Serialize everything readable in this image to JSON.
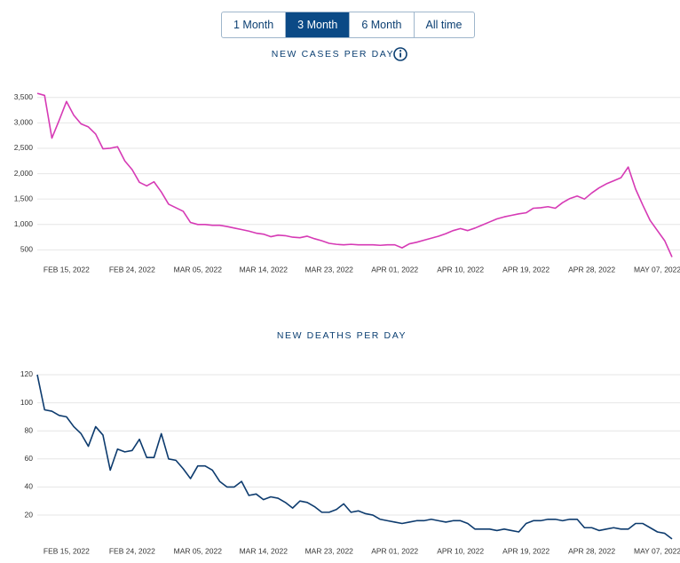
{
  "controls": [
    {
      "label": "1 Month",
      "active": false
    },
    {
      "label": "3 Month",
      "active": true
    },
    {
      "label": "6 Month",
      "active": false
    },
    {
      "label": "All time",
      "active": false
    }
  ],
  "chart_data": [
    {
      "type": "line",
      "title": "NEW CASES PER DAY",
      "color": "#d63ab5",
      "grid": true,
      "x": [
        "2022-02-11",
        "2022-02-12",
        "2022-02-13",
        "2022-02-14",
        "2022-02-15",
        "2022-02-16",
        "2022-02-17",
        "2022-02-18",
        "2022-02-19",
        "2022-02-20",
        "2022-02-21",
        "2022-02-22",
        "2022-02-23",
        "2022-02-24",
        "2022-02-25",
        "2022-02-26",
        "2022-02-27",
        "2022-02-28",
        "2022-03-01",
        "2022-03-02",
        "2022-03-03",
        "2022-03-04",
        "2022-03-05",
        "2022-03-06",
        "2022-03-07",
        "2022-03-08",
        "2022-03-09",
        "2022-03-10",
        "2022-03-11",
        "2022-03-12",
        "2022-03-13",
        "2022-03-14",
        "2022-03-15",
        "2022-03-16",
        "2022-03-17",
        "2022-03-18",
        "2022-03-19",
        "2022-03-20",
        "2022-03-21",
        "2022-03-22",
        "2022-03-23",
        "2022-03-24",
        "2022-03-25",
        "2022-03-26",
        "2022-03-27",
        "2022-03-28",
        "2022-03-29",
        "2022-03-30",
        "2022-03-31",
        "2022-04-01",
        "2022-04-02",
        "2022-04-03",
        "2022-04-04",
        "2022-04-05",
        "2022-04-06",
        "2022-04-07",
        "2022-04-08",
        "2022-04-09",
        "2022-04-10",
        "2022-04-11",
        "2022-04-12",
        "2022-04-13",
        "2022-04-14",
        "2022-04-15",
        "2022-04-16",
        "2022-04-17",
        "2022-04-18",
        "2022-04-19",
        "2022-04-20",
        "2022-04-21",
        "2022-04-22",
        "2022-04-23",
        "2022-04-24",
        "2022-04-25",
        "2022-04-26",
        "2022-04-27",
        "2022-04-28",
        "2022-04-29",
        "2022-04-30",
        "2022-05-01",
        "2022-05-02",
        "2022-05-03",
        "2022-05-04",
        "2022-05-05",
        "2022-05-06",
        "2022-05-07",
        "2022-05-08",
        "2022-05-09"
      ],
      "values": [
        3580,
        3540,
        2700,
        3050,
        3420,
        3150,
        2980,
        2920,
        2780,
        2490,
        2500,
        2530,
        2250,
        2080,
        1830,
        1760,
        1840,
        1640,
        1400,
        1330,
        1260,
        1040,
        1000,
        1000,
        985,
        985,
        960,
        930,
        900,
        870,
        830,
        810,
        760,
        790,
        780,
        750,
        740,
        770,
        720,
        680,
        630,
        610,
        600,
        610,
        600,
        600,
        600,
        590,
        600,
        600,
        540,
        620,
        650,
        690,
        730,
        770,
        820,
        880,
        920,
        880,
        930,
        990,
        1050,
        1110,
        1150,
        1180,
        1210,
        1230,
        1320,
        1330,
        1350,
        1320,
        1430,
        1510,
        1560,
        1500,
        1620,
        1720,
        1800,
        1860,
        1920,
        2130,
        1700,
        1380,
        1080,
        880,
        680,
        360
      ],
      "xlim": [
        "2022-02-11",
        "2022-05-09"
      ],
      "xticks": [
        {
          "value": "2022-02-15",
          "label": "FEB 15, 2022"
        },
        {
          "value": "2022-02-24",
          "label": "FEB 24, 2022"
        },
        {
          "value": "2022-03-05",
          "label": "MAR 05, 2022"
        },
        {
          "value": "2022-03-14",
          "label": "MAR 14, 2022"
        },
        {
          "value": "2022-03-23",
          "label": "MAR 23, 2022"
        },
        {
          "value": "2022-04-01",
          "label": "APR 01, 2022"
        },
        {
          "value": "2022-04-10",
          "label": "APR 10, 2022"
        },
        {
          "value": "2022-04-19",
          "label": "APR 19, 2022"
        },
        {
          "value": "2022-04-28",
          "label": "APR 28, 2022"
        },
        {
          "value": "2022-05-07",
          "label": "MAY 07, 2022"
        }
      ],
      "ylim": [
        350,
        3600
      ],
      "yticks": [
        {
          "value": 500,
          "label": "500"
        },
        {
          "value": 1000,
          "label": "1,000"
        },
        {
          "value": 1500,
          "label": "1,500"
        },
        {
          "value": 2000,
          "label": "2,000"
        },
        {
          "value": 2500,
          "label": "2,500"
        },
        {
          "value": 3000,
          "label": "3,000"
        },
        {
          "value": 3500,
          "label": "3,500"
        }
      ]
    },
    {
      "type": "line",
      "title": "NEW DEATHS PER DAY",
      "color": "#0d3b6e",
      "grid": true,
      "x": [
        "2022-02-11",
        "2022-02-12",
        "2022-02-13",
        "2022-02-14",
        "2022-02-15",
        "2022-02-16",
        "2022-02-17",
        "2022-02-18",
        "2022-02-19",
        "2022-02-20",
        "2022-02-21",
        "2022-02-22",
        "2022-02-23",
        "2022-02-24",
        "2022-02-25",
        "2022-02-26",
        "2022-02-27",
        "2022-02-28",
        "2022-03-01",
        "2022-03-02",
        "2022-03-03",
        "2022-03-04",
        "2022-03-05",
        "2022-03-06",
        "2022-03-07",
        "2022-03-08",
        "2022-03-09",
        "2022-03-10",
        "2022-03-11",
        "2022-03-12",
        "2022-03-13",
        "2022-03-14",
        "2022-03-15",
        "2022-03-16",
        "2022-03-17",
        "2022-03-18",
        "2022-03-19",
        "2022-03-20",
        "2022-03-21",
        "2022-03-22",
        "2022-03-23",
        "2022-03-24",
        "2022-03-25",
        "2022-03-26",
        "2022-03-27",
        "2022-03-28",
        "2022-03-29",
        "2022-03-30",
        "2022-03-31",
        "2022-04-01",
        "2022-04-02",
        "2022-04-03",
        "2022-04-04",
        "2022-04-05",
        "2022-04-06",
        "2022-04-07",
        "2022-04-08",
        "2022-04-09",
        "2022-04-10",
        "2022-04-11",
        "2022-04-12",
        "2022-04-13",
        "2022-04-14",
        "2022-04-15",
        "2022-04-16",
        "2022-04-17",
        "2022-04-18",
        "2022-04-19",
        "2022-04-20",
        "2022-04-21",
        "2022-04-22",
        "2022-04-23",
        "2022-04-24",
        "2022-04-25",
        "2022-04-26",
        "2022-04-27",
        "2022-04-28",
        "2022-04-29",
        "2022-04-30",
        "2022-05-01",
        "2022-05-02",
        "2022-05-03",
        "2022-05-04",
        "2022-05-05",
        "2022-05-06",
        "2022-05-07",
        "2022-05-08",
        "2022-05-09"
      ],
      "values": [
        120,
        95,
        94,
        91,
        90,
        83,
        78,
        69,
        83,
        77,
        52,
        67,
        65,
        66,
        74,
        61,
        61,
        78,
        60,
        59,
        53,
        46,
        55,
        55,
        52,
        44,
        40,
        40,
        44,
        34,
        35,
        31,
        33,
        32,
        29,
        25,
        30,
        29,
        26,
        22,
        22,
        24,
        28,
        22,
        23,
        21,
        20,
        17,
        16,
        15,
        14,
        15,
        16,
        16,
        17,
        16,
        15,
        16,
        16,
        14,
        10,
        10,
        10,
        9,
        10,
        9,
        8,
        14,
        16,
        16,
        17,
        17,
        16,
        17,
        17,
        11,
        11,
        9,
        10,
        11,
        10,
        10,
        14,
        14,
        11,
        8,
        7,
        3
      ],
      "xlim": [
        "2022-02-11",
        "2022-05-09"
      ],
      "xticks": [
        {
          "value": "2022-02-15",
          "label": "FEB 15, 2022"
        },
        {
          "value": "2022-02-24",
          "label": "FEB 24, 2022"
        },
        {
          "value": "2022-03-05",
          "label": "MAR 05, 2022"
        },
        {
          "value": "2022-03-14",
          "label": "MAR 14, 2022"
        },
        {
          "value": "2022-03-23",
          "label": "MAR 23, 2022"
        },
        {
          "value": "2022-04-01",
          "label": "APR 01, 2022"
        },
        {
          "value": "2022-04-10",
          "label": "APR 10, 2022"
        },
        {
          "value": "2022-04-19",
          "label": "APR 19, 2022"
        },
        {
          "value": "2022-04-28",
          "label": "APR 28, 2022"
        },
        {
          "value": "2022-05-07",
          "label": "MAY 07, 2022"
        }
      ],
      "ylim": [
        3,
        122
      ],
      "yticks": [
        20,
        40,
        60,
        80,
        100,
        120
      ]
    }
  ]
}
